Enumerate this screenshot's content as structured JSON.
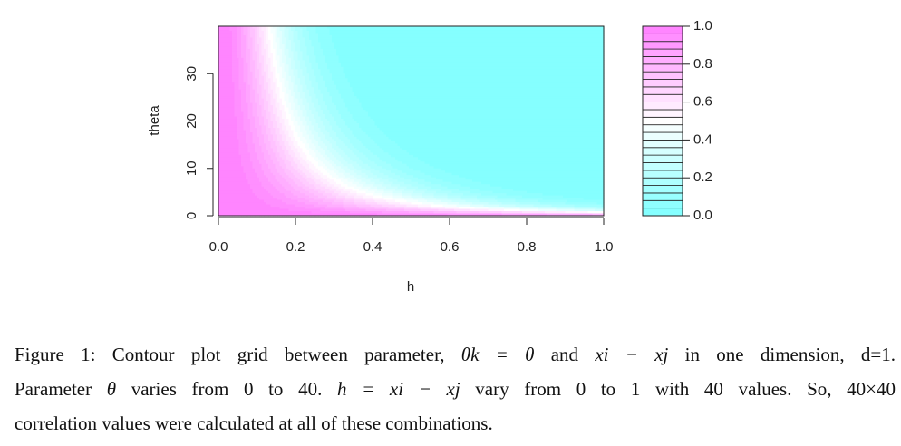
{
  "chart_data": {
    "type": "heatmap",
    "title": "",
    "xlabel": "h",
    "ylabel": "theta",
    "xlim": [
      0,
      1
    ],
    "ylim": [
      0,
      40
    ],
    "x_ticks": [
      "0.0",
      "0.2",
      "0.4",
      "0.6",
      "0.8",
      "1.0"
    ],
    "y_ticks": [
      "0",
      "10",
      "20",
      "30"
    ],
    "grid_size": [
      40,
      40
    ],
    "z_function": "exp(-theta * h^2)",
    "z_range": [
      0,
      1
    ],
    "n_levels": 25,
    "color_low": "#80ffff",
    "color_mid": "#ffffff",
    "color_high": "#ff80ff",
    "colorbar": {
      "placement": "right",
      "ticks": [
        "1.0",
        "0.8",
        "0.6",
        "0.4",
        "0.2",
        "0.0"
      ]
    }
  },
  "caption": {
    "line1_prefix": "Figure 1: Contour plot grid between parameter, ",
    "theta_k": "θk = θ",
    "and": " and ",
    "xi_minus_xj": "xi − xj",
    "line1_suffix": " in one dimension, d=1.",
    "line2_a": "Parameter ",
    "theta": "θ",
    "line2_b": " varies from 0 to 40. ",
    "h_eq": "h = xi − xj",
    "line2_c": " vary from 0 to 1 with 40 values. So, 40×40",
    "line3": "correlation values were calculated at all of these combinations."
  }
}
